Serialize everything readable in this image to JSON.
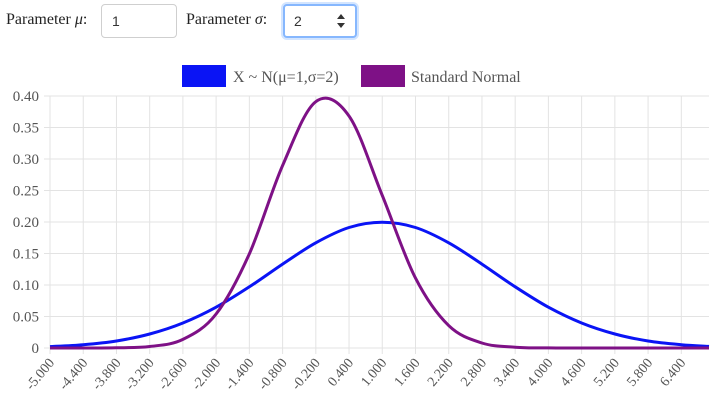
{
  "controls": {
    "mu_label_prefix": "Parameter ",
    "mu_symbol": "μ",
    "mu_value": "1",
    "sigma_label_prefix": "Parameter ",
    "sigma_symbol": "σ",
    "sigma_value": "2"
  },
  "chart_data": {
    "type": "line",
    "title": "",
    "xlabel": "",
    "ylabel": "",
    "xlim": [
      -5,
      6.9
    ],
    "ylim": [
      0,
      0.4
    ],
    "grid": true,
    "legend": "top-center",
    "x_tick_labels": [
      "-5.000",
      "-4.400",
      "-3.800",
      "-3.200",
      "-2.600",
      "-2.000",
      "-1.400",
      "-0.800",
      "-0.200",
      "0.400",
      "1.000",
      "1.600",
      "2.200",
      "2.800",
      "3.400",
      "4.000",
      "4.600",
      "5.200",
      "5.800",
      "6.400"
    ],
    "x_ticks": [
      -5.0,
      -4.4,
      -3.8,
      -3.2,
      -2.6,
      -2.0,
      -1.4,
      -0.8,
      -0.2,
      0.4,
      1.0,
      1.6,
      2.2,
      2.8,
      3.4,
      4.0,
      4.6,
      5.2,
      5.8,
      6.4
    ],
    "y_tick_labels": [
      "0",
      "0.05",
      "0.10",
      "0.15",
      "0.20",
      "0.25",
      "0.30",
      "0.35",
      "0.40"
    ],
    "y_ticks": [
      0,
      0.05,
      0.1,
      0.15,
      0.2,
      0.25,
      0.3,
      0.35,
      0.4
    ],
    "series": [
      {
        "name": "X ~ N(μ=1,σ=2)",
        "color": "#0a14f5",
        "x": [
          -5.0,
          -4.4,
          -3.8,
          -3.2,
          -2.6,
          -2.0,
          -1.4,
          -0.8,
          -0.2,
          0.4,
          1.0,
          1.6,
          2.2,
          2.8,
          3.4,
          4.0,
          4.6,
          5.2,
          5.8,
          6.4,
          6.9
        ],
        "values": [
          0.0022,
          0.0052,
          0.0111,
          0.0222,
          0.0397,
          0.0648,
          0.0971,
          0.1331,
          0.167,
          0.1912,
          0.1995,
          0.1912,
          0.167,
          0.1331,
          0.0971,
          0.0648,
          0.0397,
          0.0222,
          0.0111,
          0.0052,
          0.0025
        ]
      },
      {
        "name": "Standard Normal",
        "color": "#7e1186",
        "x": [
          -5.0,
          -4.4,
          -3.8,
          -3.2,
          -2.6,
          -2.0,
          -1.4,
          -0.8,
          -0.2,
          0.4,
          1.0,
          1.6,
          2.2,
          2.8,
          3.4,
          4.0,
          4.6,
          5.2,
          5.8,
          6.4,
          6.9
        ],
        "values": [
          0.0,
          0.0,
          0.0003,
          0.0024,
          0.0136,
          0.054,
          0.1497,
          0.2897,
          0.391,
          0.3683,
          0.242,
          0.1109,
          0.0355,
          0.0079,
          0.0012,
          0.0001,
          0.0,
          0.0,
          0.0,
          0.0,
          0.0
        ]
      }
    ]
  }
}
